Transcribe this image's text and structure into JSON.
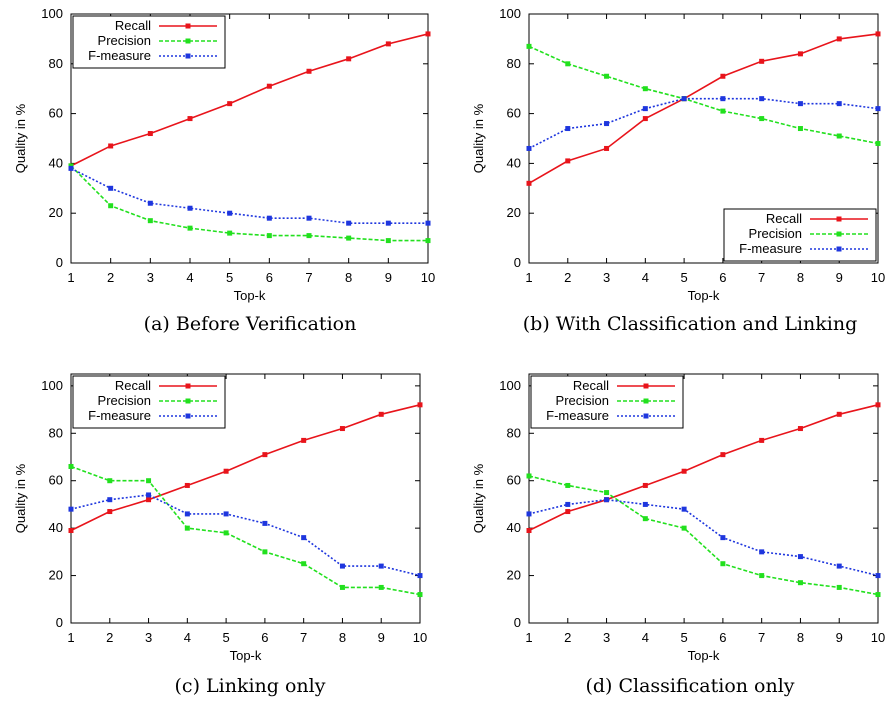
{
  "chart_data": [
    {
      "id": "a",
      "type": "line",
      "caption": "(a) Before Verification",
      "x": [
        1,
        2,
        3,
        4,
        5,
        6,
        7,
        8,
        9,
        10
      ],
      "xlabel": "Top-k",
      "ylabel": "Quality in %",
      "xlim": [
        1,
        10
      ],
      "ylim": [
        0,
        100
      ],
      "yticks": [
        0,
        20,
        40,
        60,
        80,
        100
      ],
      "legend_position": "top-left",
      "series": [
        {
          "name": "Recall",
          "color": "#e8141b",
          "dash": "solid",
          "values": [
            39,
            47,
            52,
            58,
            64,
            71,
            77,
            82,
            88,
            92
          ]
        },
        {
          "name": "Precision",
          "color": "#22e01e",
          "dash": "dashed",
          "values": [
            39,
            23,
            17,
            14,
            12,
            11,
            11,
            10,
            9,
            9
          ]
        },
        {
          "name": "F-measure",
          "color": "#1e36de",
          "dash": "dotted",
          "values": [
            38,
            30,
            24,
            22,
            20,
            18,
            18,
            16,
            16,
            16
          ]
        }
      ]
    },
    {
      "id": "b",
      "type": "line",
      "caption": "(b) With Classification and Linking",
      "x": [
        1,
        2,
        3,
        4,
        5,
        6,
        7,
        8,
        9,
        10
      ],
      "xlabel": "Top-k",
      "ylabel": "Quality in %",
      "xlim": [
        1,
        10
      ],
      "ylim": [
        0,
        100
      ],
      "yticks": [
        0,
        20,
        40,
        60,
        80,
        100
      ],
      "legend_position": "bottom-right",
      "series": [
        {
          "name": "Recall",
          "color": "#e8141b",
          "dash": "solid",
          "values": [
            32,
            41,
            46,
            58,
            66,
            75,
            81,
            84,
            90,
            92
          ]
        },
        {
          "name": "Precision",
          "color": "#22e01e",
          "dash": "dashed",
          "values": [
            87,
            80,
            75,
            70,
            66,
            61,
            58,
            54,
            51,
            48
          ]
        },
        {
          "name": "F-measure",
          "color": "#1e36de",
          "dash": "dotted",
          "values": [
            46,
            54,
            56,
            62,
            66,
            66,
            66,
            64,
            64,
            62
          ]
        }
      ]
    },
    {
      "id": "c",
      "type": "line",
      "caption": "(c) Linking only",
      "x": [
        1,
        2,
        3,
        4,
        5,
        6,
        7,
        8,
        9,
        10
      ],
      "xlabel": "Top-k",
      "ylabel": "Quality in %",
      "xlim": [
        1,
        10
      ],
      "ylim": [
        0,
        105
      ],
      "yticks": [
        0,
        20,
        40,
        60,
        80,
        100
      ],
      "legend_position": "top-left",
      "series": [
        {
          "name": "Recall",
          "color": "#e8141b",
          "dash": "solid",
          "values": [
            39,
            47,
            52,
            58,
            64,
            71,
            77,
            82,
            88,
            92
          ]
        },
        {
          "name": "Precision",
          "color": "#22e01e",
          "dash": "dashed",
          "values": [
            66,
            60,
            60,
            40,
            38,
            30,
            25,
            15,
            15,
            12
          ]
        },
        {
          "name": "F-measure",
          "color": "#1e36de",
          "dash": "dotted",
          "values": [
            48,
            52,
            54,
            46,
            46,
            42,
            36,
            24,
            24,
            20
          ]
        }
      ]
    },
    {
      "id": "d",
      "type": "line",
      "caption": "(d) Classification only",
      "x": [
        1,
        2,
        3,
        4,
        5,
        6,
        7,
        8,
        9,
        10
      ],
      "xlabel": "Top-k",
      "ylabel": "Quality in %",
      "xlim": [
        1,
        10
      ],
      "ylim": [
        0,
        105
      ],
      "yticks": [
        0,
        20,
        40,
        60,
        80,
        100
      ],
      "legend_position": "top-left",
      "series": [
        {
          "name": "Recall",
          "color": "#e8141b",
          "dash": "solid",
          "values": [
            39,
            47,
            52,
            58,
            64,
            71,
            77,
            82,
            88,
            92
          ]
        },
        {
          "name": "Precision",
          "color": "#22e01e",
          "dash": "dashed",
          "values": [
            62,
            58,
            55,
            44,
            40,
            25,
            20,
            17,
            15,
            12
          ]
        },
        {
          "name": "F-measure",
          "color": "#1e36de",
          "dash": "dotted",
          "values": [
            46,
            50,
            52,
            50,
            48,
            36,
            30,
            28,
            24,
            20
          ]
        }
      ]
    }
  ]
}
